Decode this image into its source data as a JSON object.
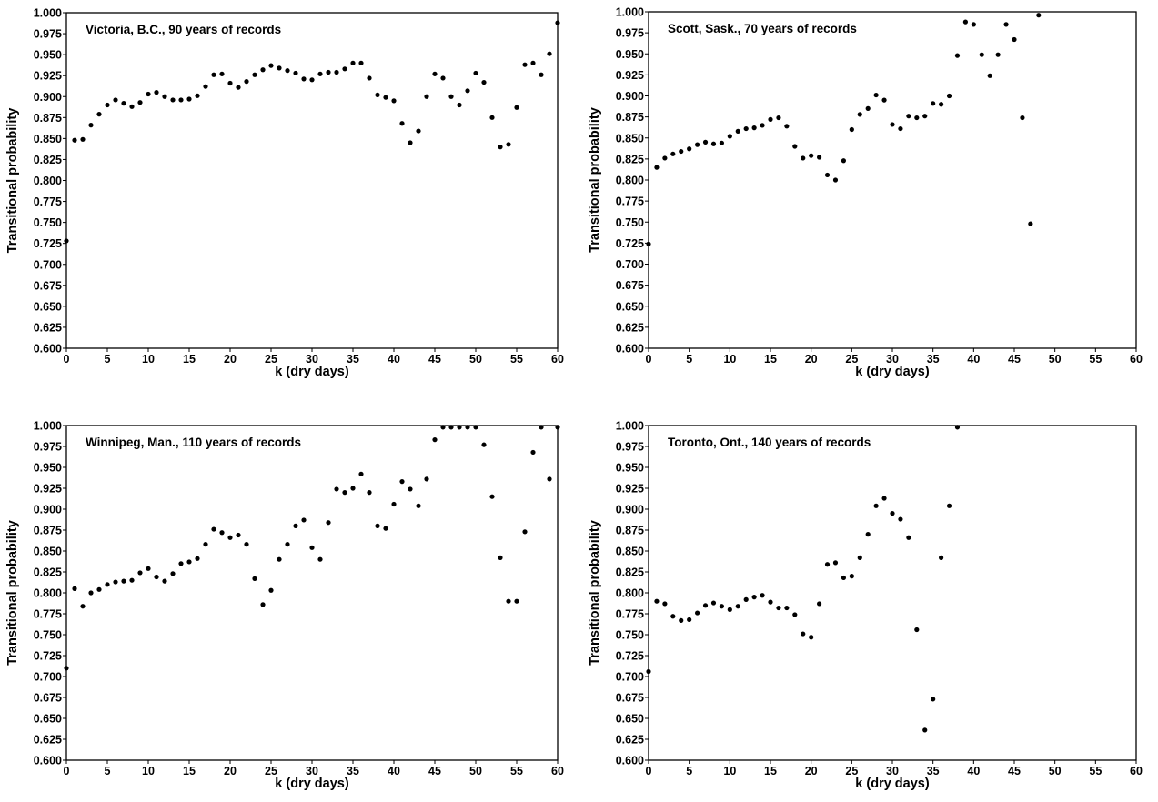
{
  "chart_data": [
    {
      "type": "scatter",
      "title": "Victoria, B.C., 90 years of records",
      "xlabel": "k (dry days)",
      "ylabel": "Transitional probability",
      "xlim": [
        0,
        60
      ],
      "ylim": [
        0.6,
        1.0
      ],
      "xticks": [
        "0",
        "5",
        "10",
        "15",
        "20",
        "25",
        "30",
        "35",
        "40",
        "45",
        "50",
        "55",
        "60"
      ],
      "yticks": [
        "0.600",
        "0.625",
        "0.650",
        "0.675",
        "0.700",
        "0.725",
        "0.750",
        "0.775",
        "0.800",
        "0.825",
        "0.850",
        "0.875",
        "0.900",
        "0.925",
        "0.950",
        "0.975",
        "1.000"
      ],
      "grid": false,
      "legend": "none",
      "x": [
        0,
        1,
        2,
        3,
        4,
        5,
        6,
        7,
        8,
        9,
        10,
        11,
        12,
        13,
        14,
        15,
        16,
        17,
        18,
        19,
        20,
        21,
        22,
        23,
        24,
        25,
        26,
        27,
        28,
        29,
        30,
        31,
        32,
        33,
        34,
        35,
        36,
        37,
        38,
        39,
        40,
        41,
        42,
        43,
        44,
        45,
        46,
        47,
        48,
        49,
        50,
        51,
        52,
        53,
        54,
        55,
        56,
        57,
        58,
        59,
        60
      ],
      "y": [
        0.728,
        0.848,
        0.849,
        0.866,
        0.879,
        0.89,
        0.896,
        0.892,
        0.888,
        0.893,
        0.903,
        0.905,
        0.9,
        0.896,
        0.896,
        0.897,
        0.901,
        0.912,
        0.926,
        0.927,
        0.916,
        0.911,
        0.918,
        0.926,
        0.932,
        0.937,
        0.934,
        0.931,
        0.928,
        0.921,
        0.92,
        0.927,
        0.929,
        0.929,
        0.933,
        0.94,
        0.94,
        0.922,
        0.902,
        0.899,
        0.895,
        0.868,
        0.845,
        0.859,
        0.9,
        0.927,
        0.922,
        0.9,
        0.89,
        0.907,
        0.928,
        0.917,
        0.875,
        0.84,
        0.843,
        0.887,
        0.938,
        0.94,
        0.926,
        0.951,
        0.988
      ]
    },
    {
      "type": "scatter",
      "title": "Scott, Sask., 70 years of records",
      "xlabel": "k (dry days)",
      "ylabel": "Transitional probability",
      "xlim": [
        0,
        60
      ],
      "ylim": [
        0.6,
        1.0
      ],
      "xticks": [
        "0",
        "5",
        "10",
        "15",
        "20",
        "25",
        "30",
        "35",
        "40",
        "45",
        "50",
        "55",
        "60"
      ],
      "yticks": [
        "0.600",
        "0.625",
        "0.650",
        "0.675",
        "0.700",
        "0.725",
        "0.750",
        "0.775",
        "0.800",
        "0.825",
        "0.850",
        "0.875",
        "0.900",
        "0.925",
        "0.950",
        "0.975",
        "1.000"
      ],
      "grid": false,
      "legend": "none",
      "x": [
        0,
        1,
        2,
        3,
        4,
        5,
        6,
        7,
        8,
        9,
        10,
        11,
        12,
        13,
        14,
        15,
        16,
        17,
        18,
        19,
        20,
        21,
        22,
        23,
        24,
        25,
        26,
        27,
        28,
        29,
        30,
        31,
        32,
        33,
        34,
        35,
        36,
        37,
        38,
        39,
        40,
        41,
        42,
        43,
        44,
        45,
        46,
        47,
        48
      ],
      "y": [
        0.724,
        0.815,
        0.826,
        0.831,
        0.834,
        0.837,
        0.842,
        0.845,
        0.843,
        0.844,
        0.852,
        0.858,
        0.861,
        0.862,
        0.865,
        0.872,
        0.874,
        0.864,
        0.84,
        0.826,
        0.829,
        0.827,
        0.806,
        0.8,
        0.823,
        0.86,
        0.878,
        0.885,
        0.901,
        0.895,
        0.866,
        0.861,
        0.876,
        0.874,
        0.876,
        0.891,
        0.89,
        0.9,
        0.948,
        0.988,
        0.985,
        0.949,
        0.924,
        0.949,
        0.985,
        0.967,
        0.874,
        0.748,
        0.996
      ]
    },
    {
      "type": "scatter",
      "title": "Winnipeg, Man., 110 years of records",
      "xlabel": "k (dry days)",
      "ylabel": "Transitional probability",
      "xlim": [
        0,
        60
      ],
      "ylim": [
        0.6,
        1.0
      ],
      "xticks": [
        "0",
        "5",
        "10",
        "15",
        "20",
        "25",
        "30",
        "35",
        "40",
        "45",
        "50",
        "55",
        "60"
      ],
      "yticks": [
        "0.600",
        "0.625",
        "0.650",
        "0.675",
        "0.700",
        "0.725",
        "0.750",
        "0.775",
        "0.800",
        "0.825",
        "0.850",
        "0.875",
        "0.900",
        "0.925",
        "0.950",
        "0.975",
        "1.000"
      ],
      "grid": false,
      "legend": "none",
      "x": [
        0,
        1,
        2,
        3,
        4,
        5,
        6,
        7,
        8,
        9,
        10,
        11,
        12,
        13,
        14,
        15,
        16,
        17,
        18,
        19,
        20,
        21,
        22,
        23,
        24,
        25,
        26,
        27,
        28,
        29,
        30,
        31,
        32,
        33,
        34,
        35,
        36,
        37,
        38,
        39,
        40,
        41,
        42,
        43,
        44,
        45,
        46,
        47,
        48,
        49,
        50,
        51,
        52,
        53,
        54,
        55,
        56,
        57,
        58,
        59,
        60
      ],
      "y": [
        0.71,
        0.805,
        0.784,
        0.8,
        0.804,
        0.81,
        0.813,
        0.814,
        0.815,
        0.824,
        0.829,
        0.819,
        0.814,
        0.823,
        0.835,
        0.837,
        0.841,
        0.858,
        0.876,
        0.872,
        0.866,
        0.869,
        0.858,
        0.817,
        0.786,
        0.803,
        0.84,
        0.858,
        0.88,
        0.887,
        0.854,
        0.84,
        0.884,
        0.924,
        0.92,
        0.925,
        0.942,
        0.92,
        0.88,
        0.877,
        0.906,
        0.933,
        0.924,
        0.904,
        0.936,
        0.983,
        0.998,
        0.998,
        0.998,
        0.998,
        0.998,
        0.977,
        0.915,
        0.842,
        0.79,
        0.79,
        0.873,
        0.968,
        0.998,
        0.936,
        0.998
      ]
    },
    {
      "type": "scatter",
      "title": "Toronto, Ont., 140 years of records",
      "xlabel": "k (dry days)",
      "ylabel": "Transitional probability",
      "xlim": [
        0,
        60
      ],
      "ylim": [
        0.6,
        1.0
      ],
      "xticks": [
        "0",
        "5",
        "10",
        "15",
        "20",
        "25",
        "30",
        "35",
        "40",
        "45",
        "50",
        "55",
        "60"
      ],
      "yticks": [
        "0.600",
        "0.625",
        "0.650",
        "0.675",
        "0.700",
        "0.725",
        "0.750",
        "0.775",
        "0.800",
        "0.825",
        "0.850",
        "0.875",
        "0.900",
        "0.925",
        "0.950",
        "0.975",
        "1.000"
      ],
      "grid": false,
      "legend": "none",
      "x": [
        0,
        1,
        2,
        3,
        4,
        5,
        6,
        7,
        8,
        9,
        10,
        11,
        12,
        13,
        14,
        15,
        16,
        17,
        18,
        19,
        20,
        21,
        22,
        23,
        24,
        25,
        26,
        27,
        28,
        29,
        30,
        31,
        32,
        33,
        34,
        35,
        36,
        37,
        38
      ],
      "y": [
        0.706,
        0.79,
        0.787,
        0.772,
        0.767,
        0.768,
        0.776,
        0.785,
        0.788,
        0.784,
        0.78,
        0.784,
        0.792,
        0.795,
        0.797,
        0.789,
        0.782,
        0.782,
        0.774,
        0.751,
        0.747,
        0.787,
        0.834,
        0.836,
        0.818,
        0.82,
        0.842,
        0.87,
        0.904,
        0.913,
        0.895,
        0.888,
        0.866,
        0.756,
        0.636,
        0.673,
        0.842,
        0.904,
        0.998
      ]
    }
  ]
}
